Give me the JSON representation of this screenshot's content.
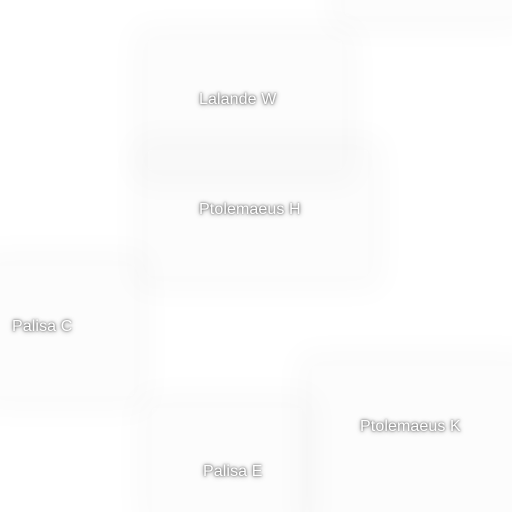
{
  "map": {
    "features": [
      {
        "id": "lalande-w",
        "label": "Lalande W"
      },
      {
        "id": "ptolemaeus-h",
        "label": "Ptolemaeus H"
      },
      {
        "id": "palisa-c",
        "label": "Palisa C"
      },
      {
        "id": "ptolemaeus-k",
        "label": "Ptolemaeus K"
      },
      {
        "id": "palisa-e",
        "label": "Palisa E"
      }
    ]
  }
}
